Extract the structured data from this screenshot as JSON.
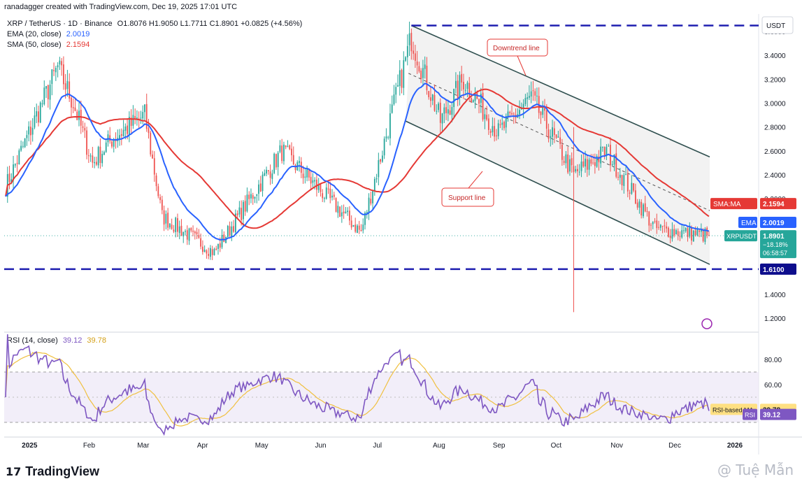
{
  "header": {
    "attribution": "ranadagger created with TradingView.com, Dec 19, 2025 17:01 UTC"
  },
  "legend": {
    "symbol": "XRP / TetherUS · 1D · Binance",
    "ohlc": "O1.8076 H1.9050 L1.7711 C1.8901 +0.0825 (+4.56%)",
    "ema_label": "EMA (20, close)",
    "ema_value": "2.0019",
    "sma_label": "SMA (50, close)",
    "sma_value": "2.1594",
    "rsi_label": "RSI (14, close)",
    "rsi_value": "39.12",
    "rsi_ma_value": "39.78"
  },
  "currency": "USDT",
  "colors": {
    "up": "#26a69a",
    "down": "#ef5350",
    "ema": "#2962ff",
    "sma": "#e53935",
    "rsi": "#7e57c2",
    "rsi_ma": "#f0c040",
    "channel_fill": "#f0f0f0",
    "trend_line": "#2f4f4f",
    "hline": "#1e1eb0"
  },
  "annotations": {
    "downtrend": "Downtrend line",
    "support": "Support line"
  },
  "tags": {
    "sma_tag": "SMA:MA",
    "sma_val": "2.1594",
    "ema_tag": "EMA",
    "ema_val": "2.0019",
    "price_sym": "XRPUSDT",
    "price_val": "1.8901",
    "price_chg": "−18.18%",
    "countdown": "06:58:57",
    "level_low": "1.6100",
    "rsi_ma_tag": "RSI-based MA",
    "rsi_ma_val": "39.78",
    "rsi_tag": "RSI",
    "rsi_val": "39.12"
  },
  "footer": {
    "brand": "TradingView",
    "watermark": "@ Tuệ Mẫn"
  },
  "chart_data": [
    {
      "type": "candlestick",
      "title": "XRP / TetherUS · 1D · Binance",
      "ylabel": "USDT",
      "ylim": [
        1.1,
        3.7
      ],
      "yticks": [
        "3.6000",
        "3.4000",
        "3.2000",
        "3.0000",
        "2.8000",
        "2.6000",
        "2.4000",
        "2.2000",
        "2.0000",
        "1.8000",
        "1.4000",
        "1.2000"
      ],
      "xticks": [
        "2025",
        "Feb",
        "Mar",
        "Apr",
        "May",
        "Jun",
        "Jul",
        "Aug",
        "Sep",
        "Oct",
        "Nov",
        "Dec",
        "2026"
      ],
      "x_start": "2024-12-20",
      "horizontal_levels": [
        3.65,
        1.61
      ],
      "series_keypoints": [
        {
          "date": "2024-12-20",
          "close": 2.3
        },
        {
          "date": "2025-01-16",
          "close": 3.3
        },
        {
          "date": "2025-01-24",
          "close": 3.0
        },
        {
          "date": "2025-02-03",
          "close": 2.5
        },
        {
          "date": "2025-02-13",
          "close": 2.7
        },
        {
          "date": "2025-03-02",
          "close": 2.9
        },
        {
          "date": "2025-03-11",
          "close": 2.05
        },
        {
          "date": "2025-04-07",
          "close": 1.75
        },
        {
          "date": "2025-05-12",
          "close": 2.6
        },
        {
          "date": "2025-06-22",
          "close": 1.92
        },
        {
          "date": "2025-07-18",
          "close": 3.55
        },
        {
          "date": "2025-08-02",
          "close": 2.85
        },
        {
          "date": "2025-08-14",
          "close": 3.2
        },
        {
          "date": "2025-09-01",
          "close": 2.75
        },
        {
          "date": "2025-09-18",
          "close": 3.05
        },
        {
          "date": "2025-10-10",
          "close": 2.4
        },
        {
          "date": "2025-10-27",
          "close": 2.6
        },
        {
          "date": "2025-11-21",
          "close": 1.95
        },
        {
          "date": "2025-12-19",
          "close": 1.8901
        }
      ],
      "ema20_last": 2.0019,
      "sma50_last": 2.1594,
      "last_price": 1.8901
    },
    {
      "type": "line",
      "title": "RSI (14, close)",
      "ylim": [
        20,
        100
      ],
      "yticks": [
        "80.00",
        "60.00"
      ],
      "bands": [
        70,
        30
      ],
      "midline": 50,
      "last_rsi": 39.12,
      "last_rsi_ma": 39.78
    }
  ]
}
